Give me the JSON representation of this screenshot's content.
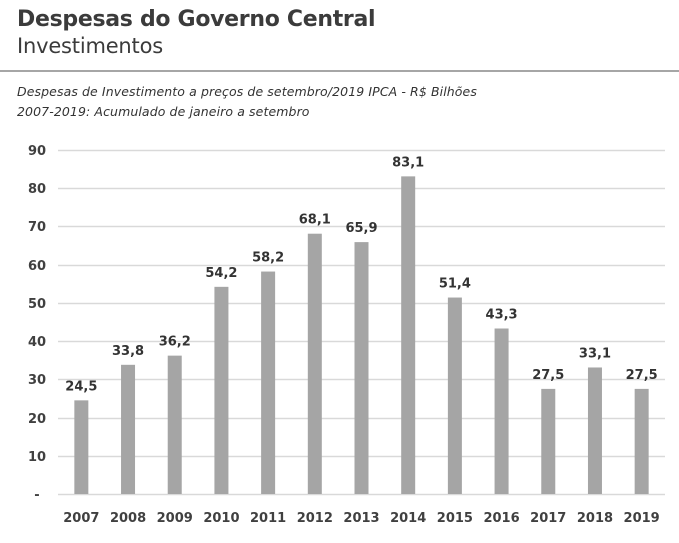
{
  "header": {
    "title": "Despesas do Governo Central",
    "subtitle": "Investimentos",
    "note_line1": "Despesas de Investimento a preços de setembro/2019 IPCA - R$ Bilhões",
    "note_line2": "2007-2019: Acumulado de janeiro a setembro"
  },
  "chart_data": {
    "type": "bar",
    "title": "Despesas do Governo Central - Investimentos",
    "xlabel": "",
    "ylabel": "R$ Bilhões",
    "categories": [
      "2007",
      "2008",
      "2009",
      "2010",
      "2011",
      "2012",
      "2013",
      "2014",
      "2015",
      "2016",
      "2017",
      "2018",
      "2019"
    ],
    "values": [
      24.5,
      33.8,
      36.2,
      54.2,
      58.2,
      68.1,
      65.9,
      83.1,
      51.4,
      43.3,
      27.5,
      33.1,
      27.5
    ],
    "data_labels": [
      "24,5",
      "33,8",
      "36,2",
      "54,2",
      "58,2",
      "68,1",
      "65,9",
      "83,1",
      "51,4",
      "43,3",
      "27,5",
      "33,1",
      "27,5"
    ],
    "ylim": [
      0,
      90
    ],
    "yticks": [
      0,
      10,
      20,
      30,
      40,
      50,
      60,
      70,
      80,
      90
    ],
    "ytick_labels": [
      "-",
      "10",
      "20",
      "30",
      "40",
      "50",
      "60",
      "70",
      "80",
      "90"
    ],
    "grid": true,
    "legend": "none",
    "colors": {
      "bar": "#a5a5a5",
      "grid": "#d9d9d9"
    }
  }
}
